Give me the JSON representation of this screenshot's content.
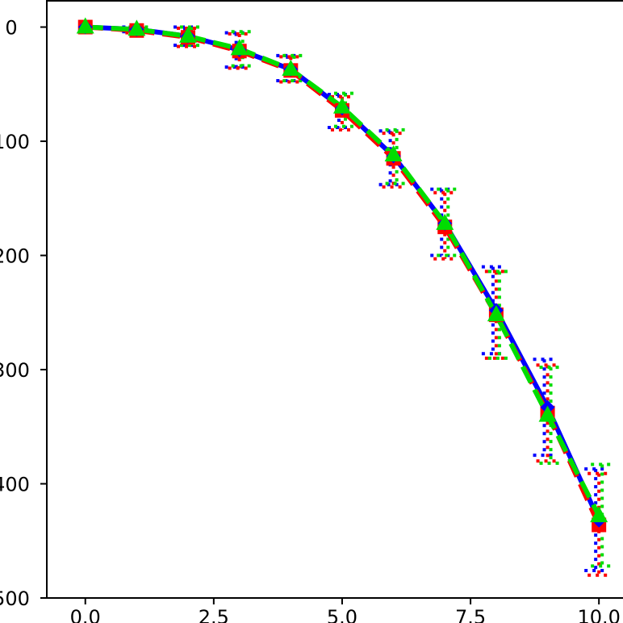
{
  "chart_data": {
    "type": "line",
    "title": "",
    "xlabel": "",
    "ylabel": "",
    "xlim": [
      -0.75,
      10.5
    ],
    "ylim": [
      500,
      -23
    ],
    "y_inverted": true,
    "grid": false,
    "legend": "none",
    "x_ticks": [
      0.0,
      2.5,
      5.0,
      7.5,
      10.0
    ],
    "x_tick_labels": [
      "0.0",
      "2.5",
      "5.0",
      "7.5",
      "10.0"
    ],
    "y_ticks": [
      0,
      100,
      200,
      300,
      400,
      500
    ],
    "y_tick_labels": [
      "0",
      "100",
      "200",
      "300",
      "400",
      "500"
    ],
    "x": [
      0,
      1,
      2,
      3,
      4,
      5,
      6,
      7,
      8,
      9,
      10
    ],
    "series": [
      {
        "color": "#0000ff",
        "line_style": "solid",
        "marker": "diamond",
        "values": [
          0,
          2,
          8,
          20,
          37,
          71,
          113,
          172,
          248,
          333,
          432
        ],
        "err_low": [
          0,
          2,
          8,
          15,
          12,
          12,
          22,
          30,
          38,
          42,
          45
        ],
        "err_high": [
          0,
          2,
          8,
          15,
          10,
          17,
          25,
          28,
          38,
          42,
          44
        ]
      },
      {
        "color": "#ff0000",
        "line_style": "dashed",
        "marker": "square",
        "values": [
          0,
          3,
          9,
          21,
          38,
          73,
          115,
          175,
          252,
          338,
          436
        ],
        "err_low": [
          0,
          2,
          8,
          15,
          12,
          12,
          22,
          30,
          38,
          42,
          45
        ],
        "err_high": [
          0,
          2,
          8,
          15,
          10,
          17,
          25,
          28,
          38,
          42,
          44
        ]
      },
      {
        "color": "#00dd00",
        "line_style": "dashed",
        "marker": "triangle",
        "values": [
          0,
          2,
          8,
          19,
          37,
          70,
          112,
          172,
          252,
          340,
          428
        ],
        "err_low": [
          0,
          2,
          8,
          15,
          12,
          12,
          22,
          30,
          38,
          42,
          45
        ],
        "err_high": [
          0,
          2,
          8,
          15,
          10,
          17,
          25,
          28,
          38,
          42,
          44
        ]
      }
    ]
  }
}
